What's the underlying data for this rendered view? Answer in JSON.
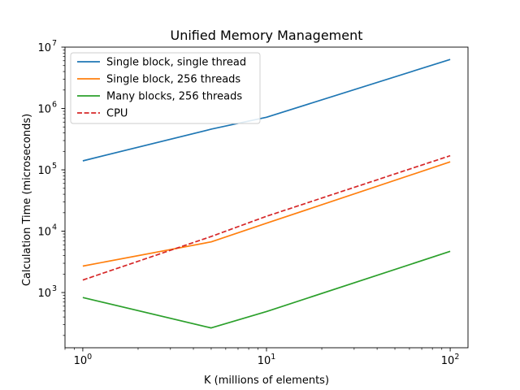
{
  "chart_data": {
    "type": "line",
    "title": "Unified Memory Management",
    "xlabel": "K (millions of elements)",
    "ylabel": "Calculation Time (microseconds)",
    "xscale": "log",
    "yscale": "log",
    "xlim": [
      0.8,
      125
    ],
    "ylim": [
      126,
      10000000
    ],
    "x_major_ticks": [
      {
        "value": 1,
        "base": "10",
        "exp": "0"
      },
      {
        "value": 10,
        "base": "10",
        "exp": "1"
      },
      {
        "value": 100,
        "base": "10",
        "exp": "2"
      }
    ],
    "y_major_ticks": [
      {
        "value": 1000,
        "base": "10",
        "exp": "3"
      },
      {
        "value": 10000,
        "base": "10",
        "exp": "4"
      },
      {
        "value": 100000,
        "base": "10",
        "exp": "5"
      },
      {
        "value": 1000000,
        "base": "10",
        "exp": "6"
      },
      {
        "value": 10000000,
        "base": "10",
        "exp": "7"
      }
    ],
    "x": [
      1,
      5,
      10,
      100
    ],
    "series": [
      {
        "name": "Single block, single thread",
        "color": "#1f77b4",
        "dash": "solid",
        "values": [
          140000,
          460000,
          720000,
          6300000
        ]
      },
      {
        "name": "Single block, 256 threads",
        "color": "#ff7f0e",
        "dash": "solid",
        "values": [
          2700,
          6700,
          13500,
          135000
        ]
      },
      {
        "name": "Many blocks, 256 threads",
        "color": "#2ca02c",
        "dash": "solid",
        "values": [
          830,
          265,
          490,
          4700
        ]
      },
      {
        "name": "CPU",
        "color": "#d62728",
        "dash": "dashed",
        "values": [
          1600,
          8200,
          17500,
          170000
        ]
      }
    ],
    "legend_position": "top-left",
    "grid": false
  }
}
